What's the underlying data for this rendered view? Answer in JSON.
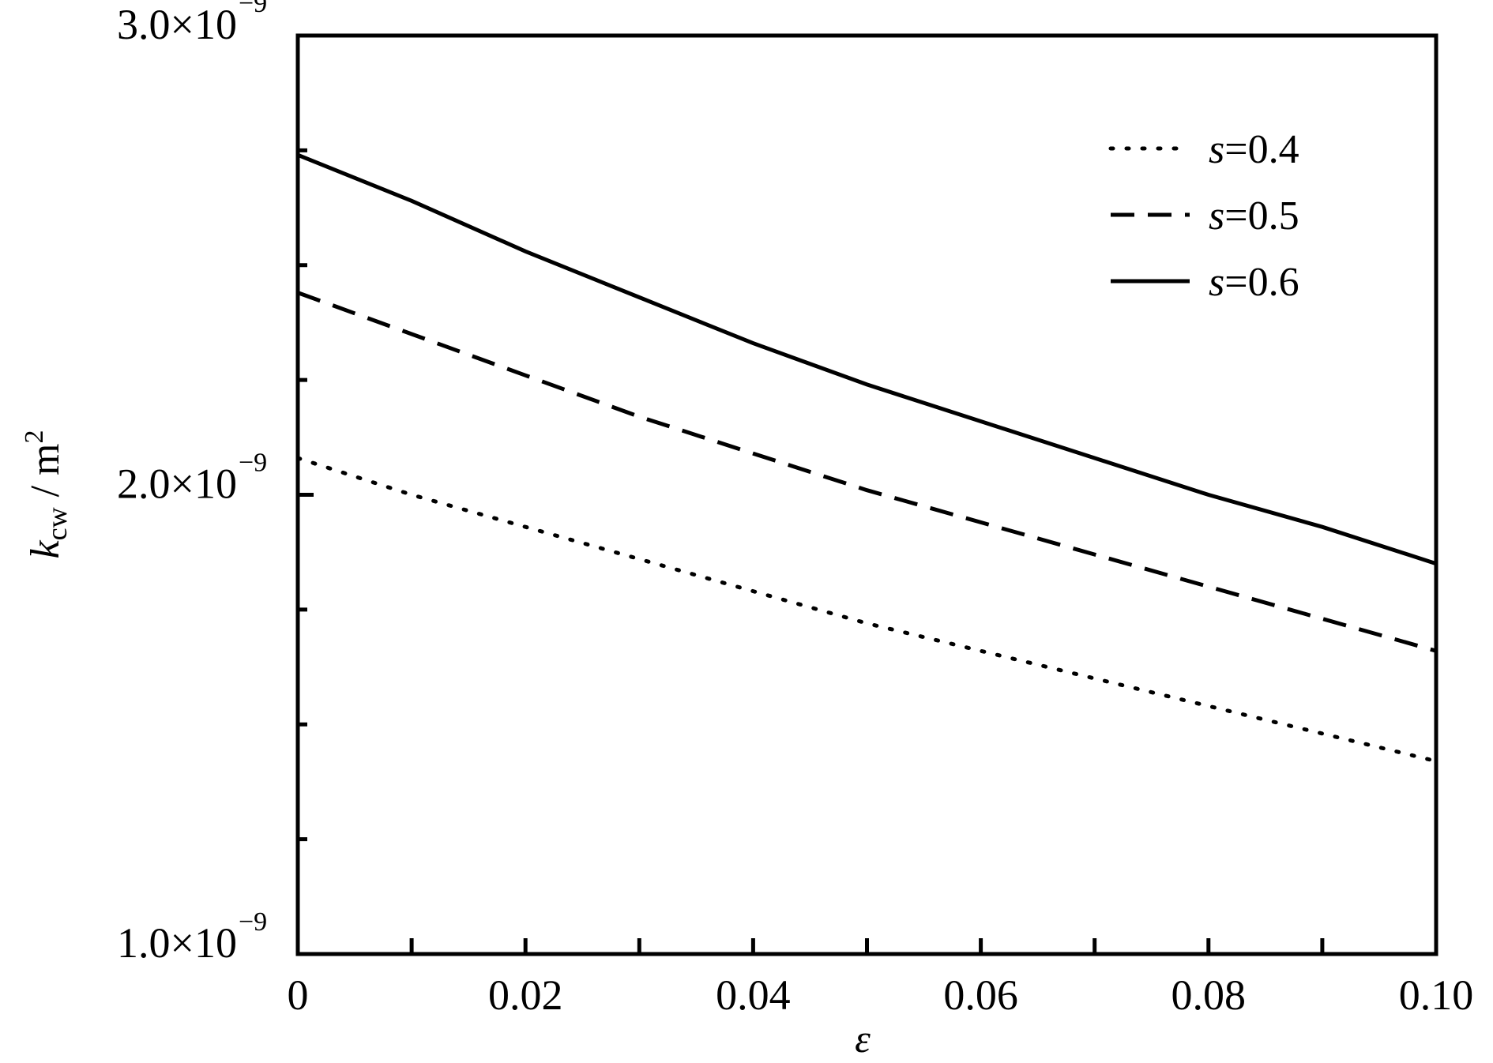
{
  "chart_data": {
    "type": "line",
    "xlabel": "ε",
    "ylabel": {
      "main": "k",
      "subscript": "cw",
      "unit": " / m",
      "unit_exponent": "2"
    },
    "xlim": [
      0,
      0.1
    ],
    "ylim": [
      1e-09,
      3e-09
    ],
    "x_ticks": [
      0,
      0.02,
      0.04,
      0.06,
      0.08,
      0.1
    ],
    "x_tick_labels": [
      "0",
      "0.02",
      "0.04",
      "0.06",
      "0.08",
      "0.10"
    ],
    "x_minor_ticks": [
      0.01,
      0.03,
      0.05,
      0.07,
      0.09
    ],
    "y_ticks": [
      1e-09,
      2e-09,
      3e-09
    ],
    "y_tick_labels": [
      {
        "mantissa": "1.0×10",
        "exponent": "−9"
      },
      {
        "mantissa": "2.0×10",
        "exponent": "−9"
      },
      {
        "mantissa": "3.0×10",
        "exponent": "−9"
      }
    ],
    "y_minor_ticks": [
      1.25e-09,
      1.5e-09,
      1.75e-09,
      2.25e-09,
      2.5e-09,
      2.75e-09
    ],
    "grid": false,
    "legend_position": "top-right",
    "x": [
      0,
      0.01,
      0.02,
      0.03,
      0.04,
      0.05,
      0.06,
      0.07,
      0.08,
      0.09,
      0.1
    ],
    "series": [
      {
        "name": "s=0.4",
        "label": {
          "variable": "s",
          "value": "=0.4"
        },
        "style": "dotted",
        "values": [
          2.08e-09,
          2e-09,
          1.93e-09,
          1.86e-09,
          1.79e-09,
          1.72e-09,
          1.66e-09,
          1.6e-09,
          1.54e-09,
          1.48e-09,
          1.42e-09
        ]
      },
      {
        "name": "s=0.5",
        "label": {
          "variable": "s",
          "value": "=0.5"
        },
        "style": "dashed",
        "values": [
          2.44e-09,
          2.35e-09,
          2.26e-09,
          2.17e-09,
          2.09e-09,
          2.01e-09,
          1.94e-09,
          1.87e-09,
          1.8e-09,
          1.73e-09,
          1.66e-09
        ]
      },
      {
        "name": "s=0.6",
        "label": {
          "variable": "s",
          "value": "=0.6"
        },
        "style": "solid",
        "values": [
          2.74e-09,
          2.64e-09,
          2.53e-09,
          2.43e-09,
          2.33e-09,
          2.24e-09,
          2.16e-09,
          2.08e-09,
          2e-09,
          1.93e-09,
          1.85e-09
        ]
      }
    ]
  }
}
